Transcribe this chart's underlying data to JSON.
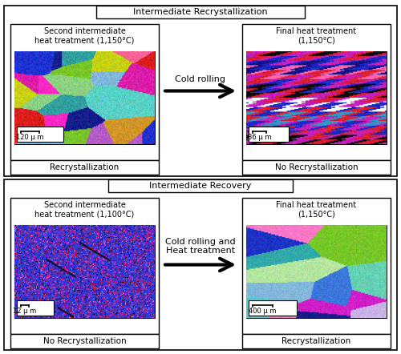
{
  "fig_width": 5.0,
  "fig_height": 4.42,
  "dpi": 100,
  "white": "#ffffff",
  "black": "#000000",
  "row1_title": "Intermediate Recrystallization",
  "row2_title": "Intermediate Recovery",
  "panel_titles": [
    "Second intermediate\nheat treatment (1,150°C)",
    "Final heat treatment\n(1,150°C)",
    "Second intermediate\nheat treatment (1,100°C)",
    "Final heat treatment\n(1,150°C)"
  ],
  "panel_labels": [
    "Recrystallization",
    "No Recrystallization",
    "No Recrystallization",
    "Recrystallization"
  ],
  "scale_labels": [
    "120 μ m",
    "36 μ m",
    "12 μ m",
    "400 μ m"
  ],
  "arrow_texts": [
    "Cold rolling",
    "Cold rolling and\nHeat treatment"
  ]
}
